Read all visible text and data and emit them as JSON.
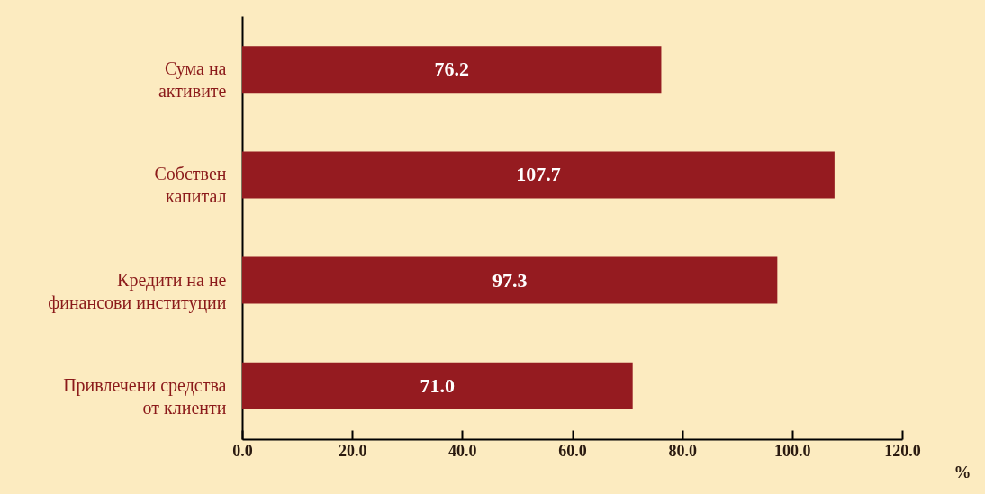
{
  "chart_data": {
    "type": "bar",
    "orientation": "horizontal",
    "categories": [
      "Сума на\nактивите",
      "Собствен\nкапитал",
      "Кредити на не\nфинансови институции",
      "Привлечени средства\nот клиенти"
    ],
    "values": [
      76.2,
      107.7,
      97.3,
      71.0
    ],
    "value_labels": [
      "76.2",
      "107.7",
      "97.3",
      "71.0"
    ],
    "color": "#951b20",
    "xlim": [
      0,
      120
    ],
    "xticks": [
      {
        "value": 0,
        "label": "0.0"
      },
      {
        "value": 20,
        "label": "20.0"
      },
      {
        "value": 40,
        "label": "40.0"
      },
      {
        "value": 60,
        "label": "60.0"
      },
      {
        "value": 80,
        "label": "80.0"
      },
      {
        "value": 100,
        "label": "100.0"
      },
      {
        "value": 120,
        "label": "120.0"
      }
    ],
    "xlabel": "%",
    "grid": false
  }
}
